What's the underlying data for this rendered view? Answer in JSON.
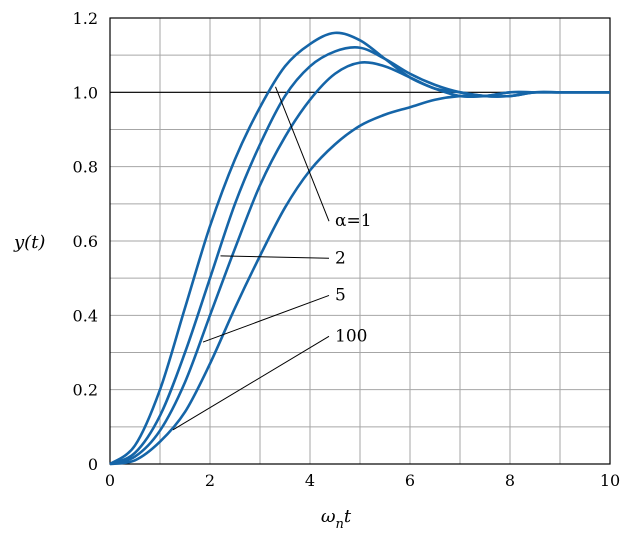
{
  "chart_data": {
    "type": "line",
    "xlabel_main": "ω",
    "xlabel_sub": "n",
    "xlabel_end": "t",
    "ylabel": "y(t)",
    "xlim": [
      0,
      10
    ],
    "ylim": [
      0,
      1.2
    ],
    "x_ticks": [
      "0",
      "2",
      "4",
      "6",
      "8",
      "10"
    ],
    "y_ticks": [
      "0",
      "0.2",
      "0.4",
      "0.6",
      "0.8",
      "1.0",
      "1.2"
    ],
    "x_tick_values": [
      0,
      2,
      4,
      6,
      8,
      10
    ],
    "y_tick_values": [
      0,
      0.2,
      0.4,
      0.6,
      0.8,
      1.0,
      1.2
    ],
    "grid": true,
    "reference_line": {
      "y": 1.0
    },
    "line_color": "#1565a8",
    "x": [
      0,
      0.5,
      1,
      1.5,
      2,
      2.5,
      3,
      3.5,
      4,
      4.5,
      5,
      5.5,
      6,
      6.5,
      7,
      7.5,
      8,
      8.5,
      9,
      9.5,
      10
    ],
    "series": [
      {
        "name": "α=1",
        "values": [
          0,
          0.05,
          0.2,
          0.42,
          0.64,
          0.82,
          0.96,
          1.07,
          1.13,
          1.16,
          1.14,
          1.09,
          1.04,
          1.01,
          0.99,
          0.99,
          1.0,
          1.0,
          1.0,
          1.0,
          1.0
        ]
      },
      {
        "name": "2",
        "values": [
          0,
          0.03,
          0.13,
          0.3,
          0.5,
          0.7,
          0.86,
          0.99,
          1.07,
          1.11,
          1.12,
          1.09,
          1.05,
          1.02,
          1.0,
          0.99,
          0.99,
          1.0,
          1.0,
          1.0,
          1.0
        ]
      },
      {
        "name": "5",
        "values": [
          0,
          0.02,
          0.09,
          0.22,
          0.4,
          0.58,
          0.75,
          0.88,
          0.98,
          1.05,
          1.08,
          1.07,
          1.04,
          1.01,
          1.0,
          0.99,
          0.99,
          1.0,
          1.0,
          1.0,
          1.0
        ]
      },
      {
        "name": "100",
        "values": [
          0,
          0.01,
          0.06,
          0.14,
          0.27,
          0.42,
          0.56,
          0.69,
          0.79,
          0.86,
          0.91,
          0.94,
          0.96,
          0.98,
          0.99,
          0.99,
          1.0,
          1.0,
          1.0,
          1.0,
          1.0
        ]
      }
    ],
    "annotations": [
      {
        "label": "α=1",
        "series_index": 0,
        "anchor_x": 3.25,
        "label_x": 4.5,
        "label_y": 0.64
      },
      {
        "label": "2",
        "series_index": 1,
        "anchor_x": 2.15,
        "label_x": 4.5,
        "label_y": 0.54
      },
      {
        "label": "5",
        "series_index": 2,
        "anchor_x": 1.8,
        "label_x": 4.5,
        "label_y": 0.44
      },
      {
        "label": "100",
        "series_index": 3,
        "anchor_x": 1.2,
        "label_x": 4.5,
        "label_y": 0.33
      }
    ]
  }
}
